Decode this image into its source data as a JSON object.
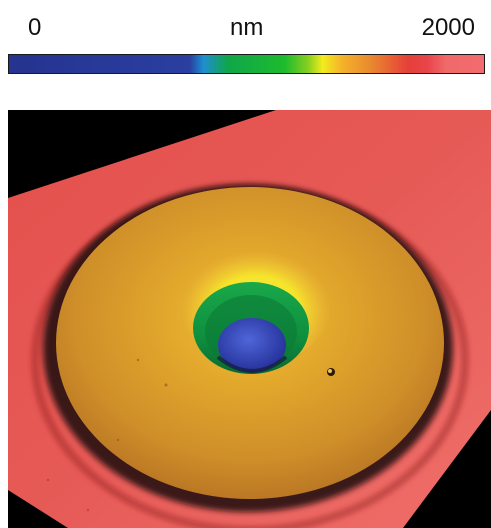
{
  "colorbar": {
    "min_label": "0",
    "unit_label": "nm",
    "max_label": "2000",
    "stops": [
      "#26338f",
      "#1e8fd0",
      "#0fa64a",
      "#f2ec1e",
      "#e98a2e",
      "#e6403a",
      "#f36b6e"
    ]
  },
  "image": {
    "description_colors": {
      "background": "#000000",
      "substrate": "#e55a55",
      "plateau": "#d9a12e",
      "peak_ring": "#f2ec1e",
      "well_wall": "#119a45",
      "well_bottom": "#2f3fae"
    }
  }
}
